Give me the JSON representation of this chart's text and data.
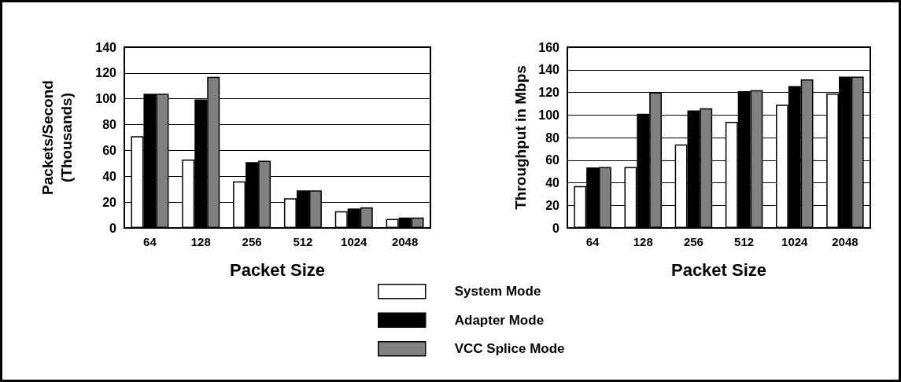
{
  "chart_data": [
    {
      "type": "bar",
      "xlabel": "Packet Size",
      "ylabel": "Packets/Second\n(Thousands)",
      "categories": [
        "64",
        "128",
        "256",
        "512",
        "1024",
        "2048"
      ],
      "ylim": [
        0,
        140
      ],
      "yticks": [
        0,
        20,
        40,
        60,
        80,
        100,
        120,
        140
      ],
      "grid": "y",
      "legend": "bottom",
      "series": [
        {
          "name": "System Mode",
          "color": "#ffffff",
          "values": [
            71,
            53,
            36,
            23,
            13,
            7
          ]
        },
        {
          "name": "Adapter Mode",
          "color": "#000000",
          "values": [
            104,
            99.5,
            51,
            29,
            15,
            8
          ]
        },
        {
          "name": "VCC Splice Mode",
          "color": "#808080",
          "values": [
            104,
            117,
            52,
            29,
            16,
            8
          ]
        }
      ]
    },
    {
      "type": "bar",
      "xlabel": "Packet Size",
      "ylabel": "Throughput in Mbps",
      "categories": [
        "64",
        "128",
        "256",
        "512",
        "1024",
        "2048"
      ],
      "ylim": [
        0,
        160
      ],
      "yticks": [
        0,
        20,
        40,
        60,
        80,
        100,
        120,
        140,
        160
      ],
      "grid": "y",
      "series": [
        {
          "color": "#ffffff",
          "values": [
            37,
            54,
            74,
            94,
            109,
            119
          ]
        },
        {
          "color": "#000000",
          "values": [
            53.5,
            101,
            104,
            121,
            125.5,
            134
          ]
        },
        {
          "color": "#808080",
          "values": [
            54,
            120,
            106,
            122,
            131.5,
            134
          ]
        }
      ]
    }
  ]
}
